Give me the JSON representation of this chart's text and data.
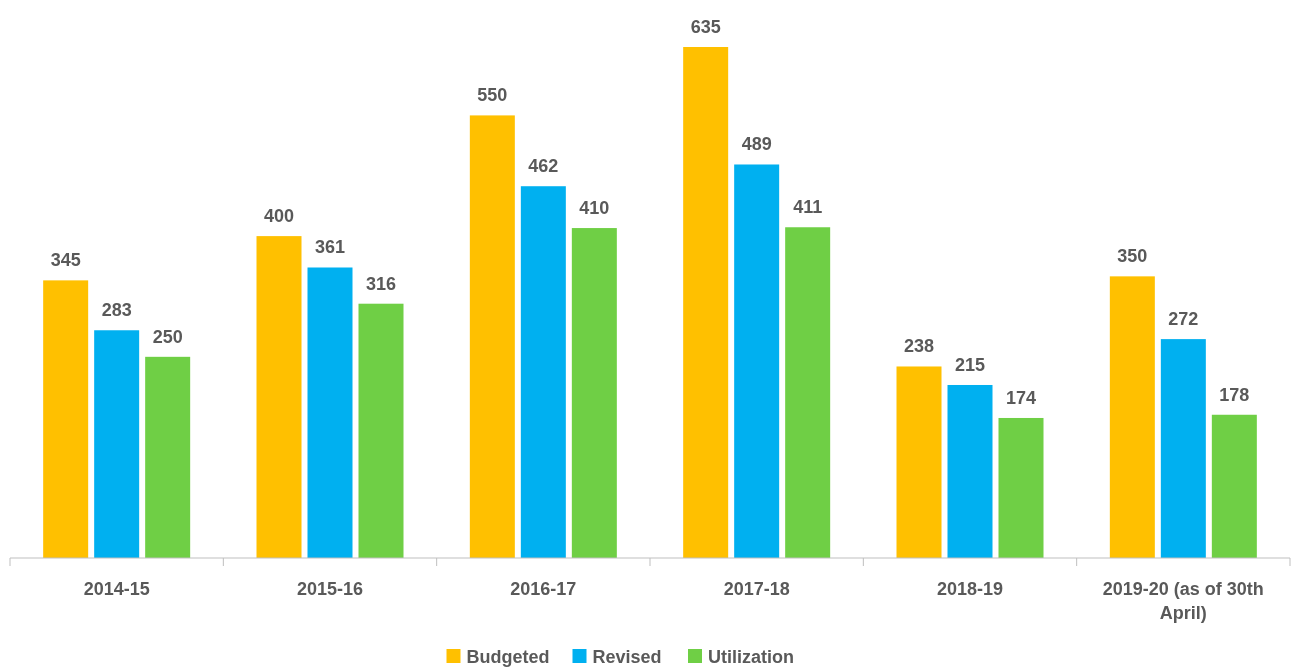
{
  "chart_data": {
    "type": "bar",
    "categories": [
      "2014-15",
      "2015-16",
      "2016-17",
      "2017-18",
      "2018-19",
      "2019-20 (as of 30th April)"
    ],
    "series": [
      {
        "name": "Budgeted",
        "color": "#ffc000",
        "values": [
          345,
          400,
          550,
          635,
          238,
          350
        ]
      },
      {
        "name": "Revised",
        "color": "#00b0f0",
        "values": [
          283,
          361,
          462,
          489,
          215,
          272
        ]
      },
      {
        "name": "Utilization",
        "color": "#6fcf45",
        "values": [
          250,
          316,
          410,
          411,
          174,
          178
        ]
      }
    ],
    "data_labels": true,
    "legend": "bottom"
  }
}
